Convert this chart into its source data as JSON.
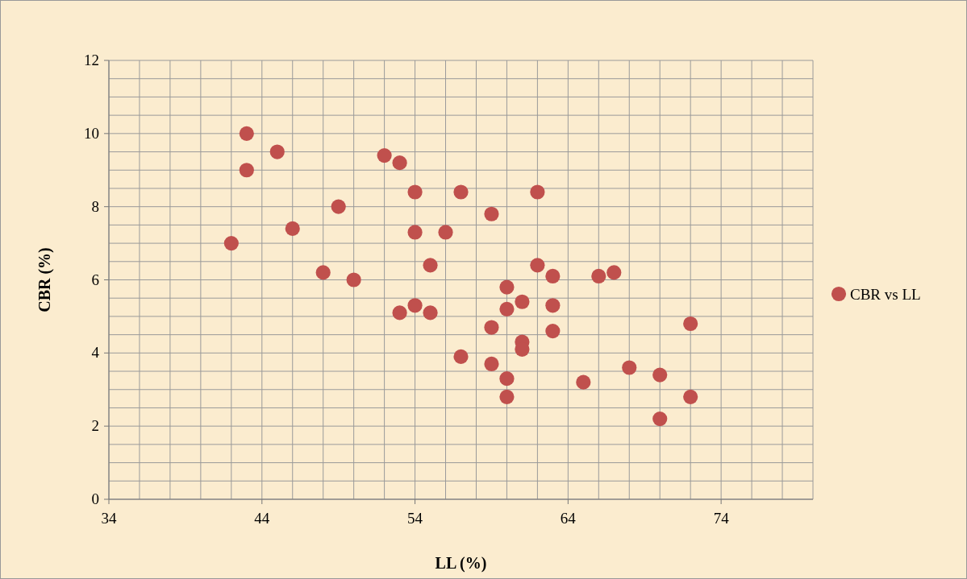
{
  "chart_data": {
    "type": "scatter",
    "xlabel": "LL (%)",
    "ylabel": "CBR (%)",
    "xlim": [
      34,
      80
    ],
    "xticks": [
      34,
      44,
      54,
      64,
      74
    ],
    "ylim": [
      0,
      12
    ],
    "yticks": [
      0,
      2,
      4,
      6,
      8,
      10,
      12
    ],
    "grid": true,
    "legend": "right",
    "marker": "circle",
    "series": [
      {
        "name": "CBR vs LL",
        "color": "#c0504d",
        "x": [
          42,
          43,
          43,
          45,
          46,
          48,
          49,
          50,
          52,
          53,
          53,
          54,
          54,
          54,
          55,
          55,
          56,
          57,
          57,
          59,
          59,
          59,
          60,
          60,
          60,
          60,
          61,
          61,
          61,
          62,
          62,
          63,
          63,
          63,
          65,
          66,
          67,
          68,
          70,
          70,
          72,
          72
        ],
        "values": [
          7.0,
          10.0,
          9.0,
          9.5,
          7.4,
          6.2,
          8.0,
          6.0,
          9.4,
          9.2,
          5.1,
          8.4,
          7.3,
          5.3,
          6.4,
          5.1,
          7.3,
          8.4,
          3.9,
          7.8,
          4.7,
          3.7,
          5.8,
          5.2,
          3.3,
          2.8,
          5.4,
          4.3,
          4.1,
          8.4,
          6.4,
          6.1,
          5.3,
          4.6,
          3.2,
          6.1,
          6.2,
          3.6,
          3.4,
          2.2,
          4.8,
          2.8
        ]
      }
    ]
  }
}
